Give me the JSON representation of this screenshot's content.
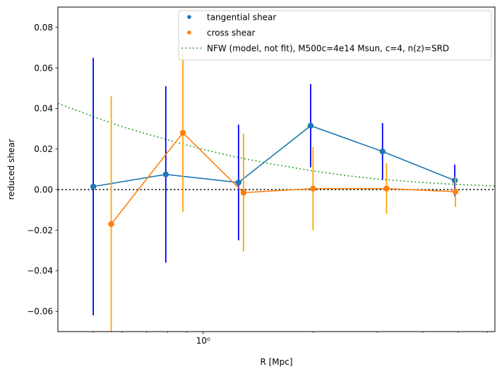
{
  "chart_data": {
    "type": "scatter",
    "xlabel": "R [Mpc]",
    "ylabel": "reduced shear",
    "xscale": "log",
    "xlim": [
      0.4,
      6.3
    ],
    "ylim": [
      -0.07,
      0.09
    ],
    "yticks": [
      -0.06,
      -0.04,
      -0.02,
      0.0,
      0.02,
      0.04,
      0.06,
      0.08
    ],
    "ytick_labels": [
      "−0.06",
      "−0.04",
      "−0.02",
      "0.00",
      "0.02",
      "0.04",
      "0.06",
      "0.08"
    ],
    "xticks_major": [
      1
    ],
    "xtick_labels": [
      "10⁰"
    ],
    "xticks_minor": [
      0.4,
      0.5,
      0.6,
      0.7,
      0.8,
      0.9,
      2,
      3,
      4,
      5,
      6
    ],
    "legend_position": "top-right",
    "zero_line": true,
    "series": [
      {
        "name": "tangential shear",
        "color": "#1f77b4",
        "errorbar_color": "#0000ff",
        "x": [
          0.5,
          0.79,
          1.25,
          1.97,
          3.1,
          4.89
        ],
        "y": [
          0.0015,
          0.0075,
          0.0035,
          0.0315,
          0.0188,
          0.0045
        ],
        "yerr": [
          0.0635,
          0.0435,
          0.0285,
          0.0205,
          0.014,
          0.0078
        ]
      },
      {
        "name": "cross shear",
        "color": "#ff7f0e",
        "errorbar_color": "#ffa500",
        "x": [
          0.56,
          0.88,
          1.29,
          2.0,
          3.18,
          4.91
        ],
        "y": [
          -0.017,
          0.028,
          -0.0015,
          0.0005,
          0.0005,
          -0.001
        ],
        "yerr": [
          0.063,
          0.039,
          0.029,
          0.0205,
          0.0125,
          0.0075
        ]
      },
      {
        "name": "NFW (model, not fit), M500c=4e14 Msun, c=4, n(z)=SRD",
        "color": "#2ca02c",
        "style": "dotted",
        "x": [
          0.4,
          0.5,
          0.6,
          0.7,
          0.8,
          1.0,
          1.2,
          1.5,
          2.0,
          2.5,
          3.0,
          4.0,
          5.0,
          6.3
        ],
        "y": [
          0.0425,
          0.036,
          0.031,
          0.0275,
          0.0245,
          0.0198,
          0.0165,
          0.013,
          0.0092,
          0.0068,
          0.0052,
          0.0035,
          0.0025,
          0.0018
        ]
      }
    ]
  }
}
